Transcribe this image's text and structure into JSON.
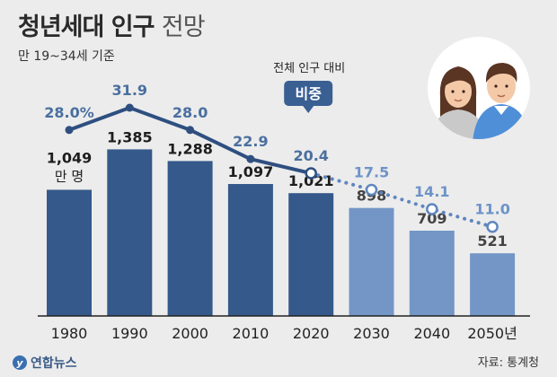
{
  "header": {
    "title_bold": "청년세대 인구",
    "title_light": "전망",
    "subtitle": "만 19~34세 기준"
  },
  "annotation": {
    "caption": "전체 인구 대비",
    "badge": "비중"
  },
  "footer": {
    "source": "자료: 통계청",
    "logo_text": "연합뉴스",
    "logo_glyph": "y"
  },
  "colors": {
    "bar_actual": "#35598a",
    "bar_projected": "#7396c6",
    "line": "#2e4f80",
    "line_projected": "#5f86bf",
    "label_actual": "#444444",
    "label_projected": "#6d93c8",
    "badge": "#3a5f93",
    "background": "#ececec"
  },
  "chart_data": {
    "type": "bar",
    "categories": [
      "1980",
      "1990",
      "2000",
      "2010",
      "2020",
      "2030",
      "2040",
      "2050년"
    ],
    "series": [
      {
        "values": [
          1049,
          1385,
          1288,
          1097,
          1021,
          898,
          709,
          521
        ],
        "value_labels": [
          "1,049",
          "1,385",
          "1,288",
          "1,097",
          "1,021",
          "898",
          "709",
          "521"
        ],
        "unit_label": "만 명",
        "projected_from_index": 5
      },
      {
        "type": "line",
        "values": [
          28.0,
          31.9,
          28.0,
          22.9,
          20.4,
          17.5,
          14.1,
          11.0
        ],
        "value_labels": [
          "28.0%",
          "31.9",
          "28.0",
          "22.9",
          "20.4",
          "17.5",
          "14.1",
          "11.0"
        ],
        "projected_from_index": 4
      }
    ],
    "grid": false,
    "legend": "none"
  }
}
